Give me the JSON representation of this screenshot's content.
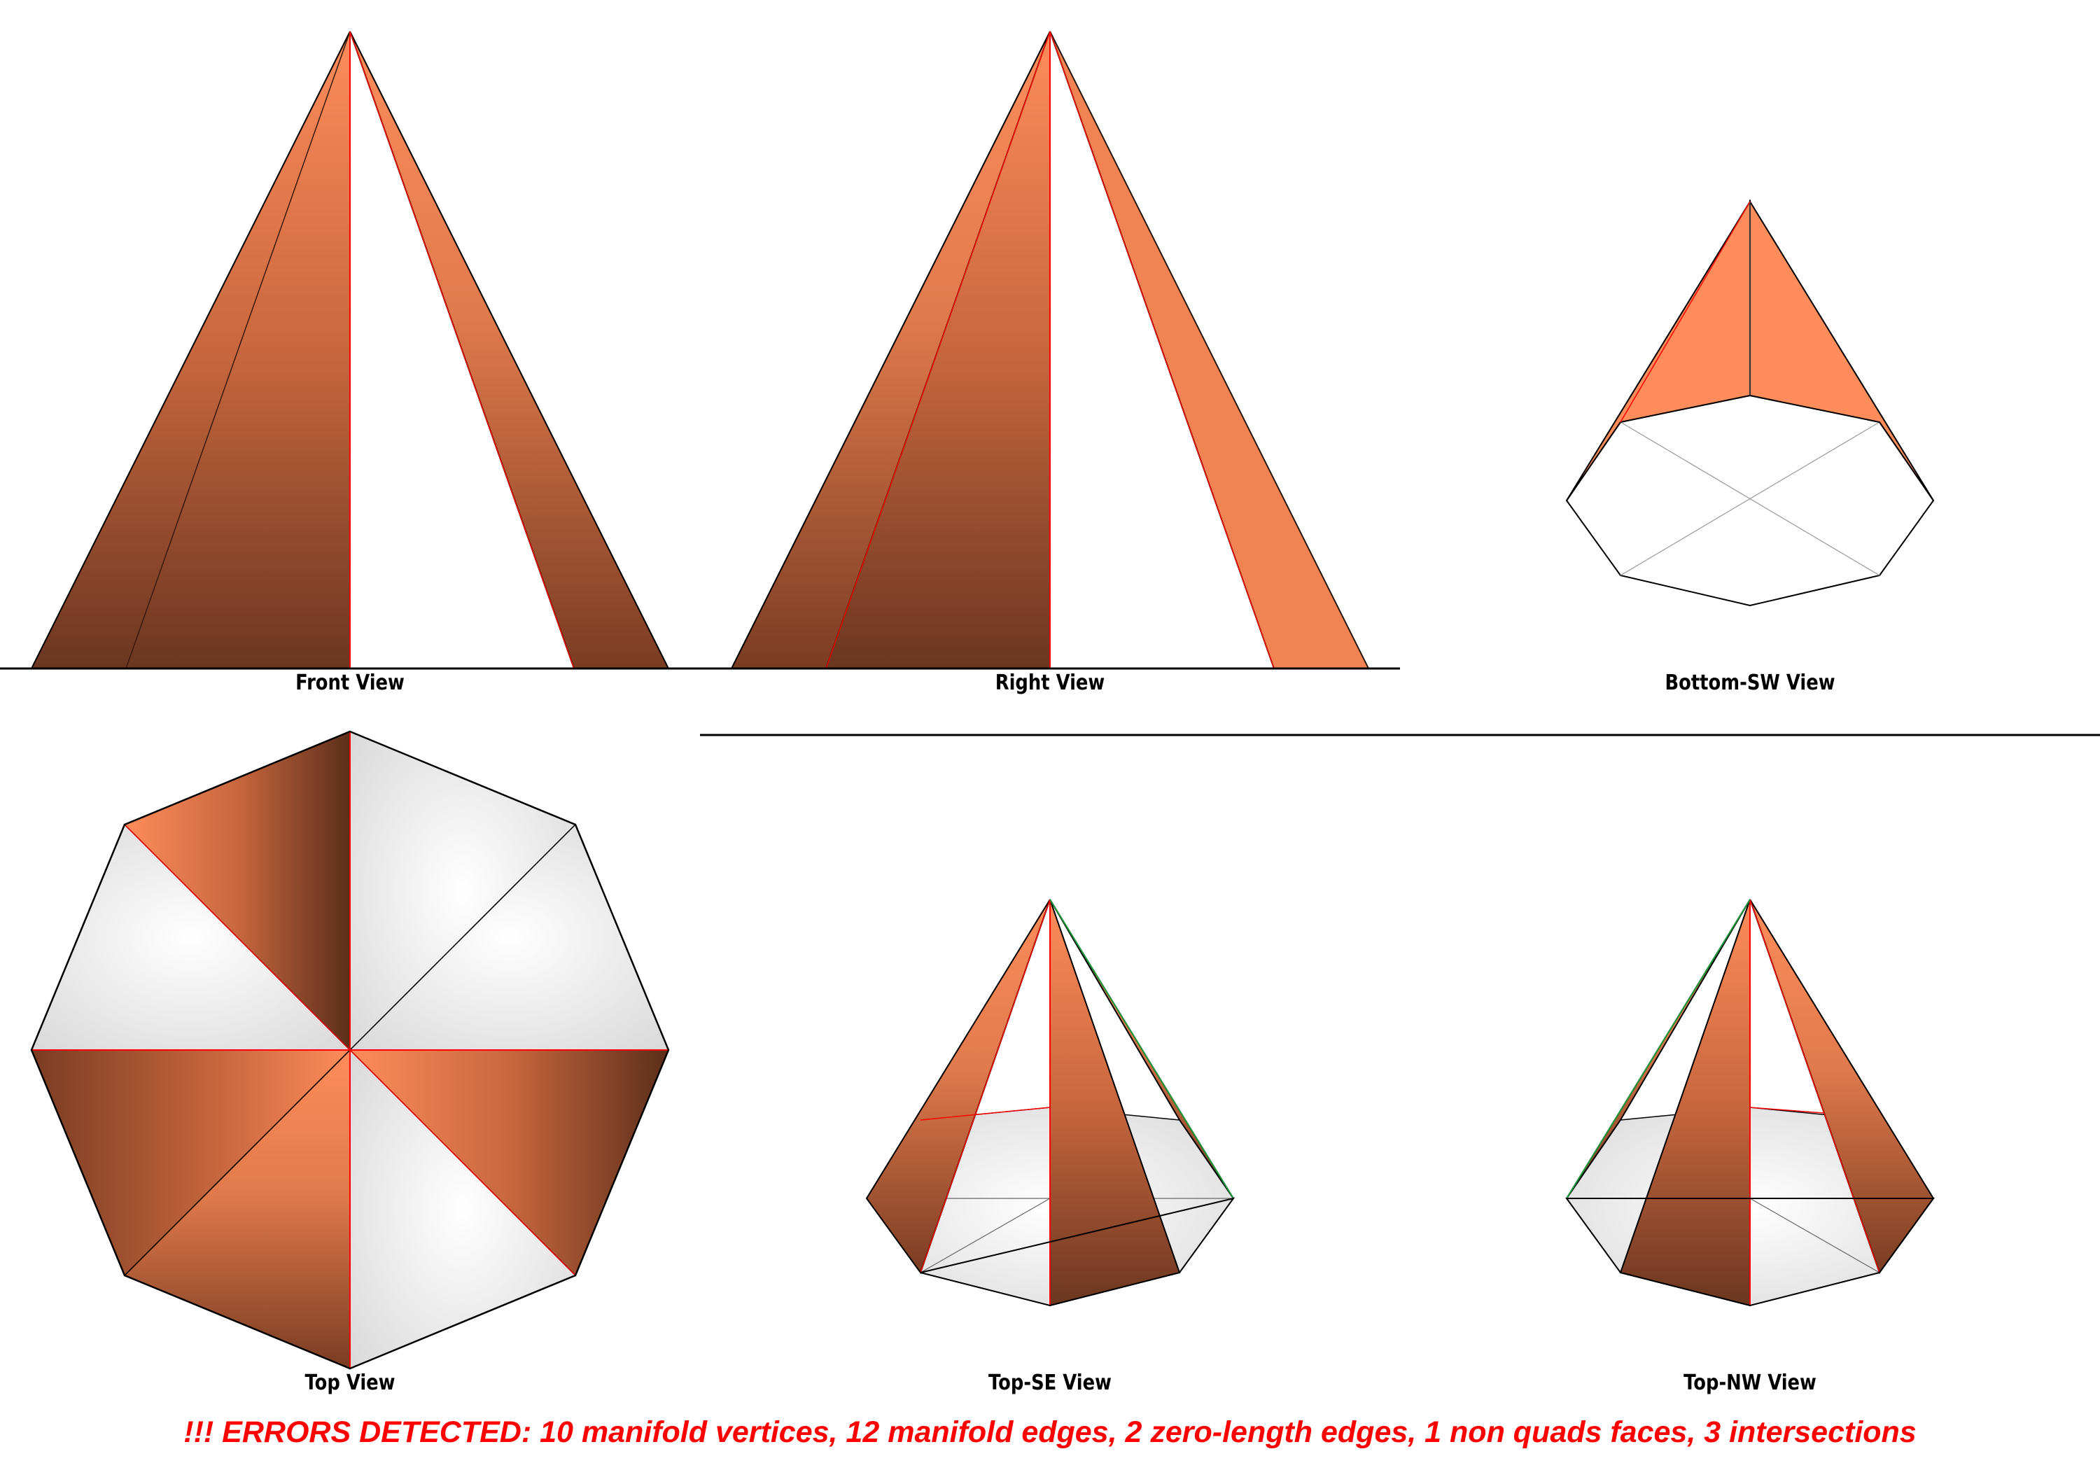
{
  "views": {
    "front": "Front View",
    "right": "Right View",
    "bottom_sw": "Bottom-SW View",
    "top": "Top View",
    "top_se": "Top-SE View",
    "top_nw": "Top-NW View"
  },
  "error_banner": "!!! ERRORS DETECTED: 10 manifold vertices, 12 manifold edges, 2 zero-length edges, 1 non quads faces, 3 intersections",
  "colors": {
    "face_light": "#ff8c5a",
    "face_mid": "#c8673e",
    "face_dark": "#6b3620",
    "interior": "#e6e6e6",
    "error_edge": "#ff0000",
    "green_edge": "#1a9a3a",
    "error_text": "#ff0000"
  }
}
